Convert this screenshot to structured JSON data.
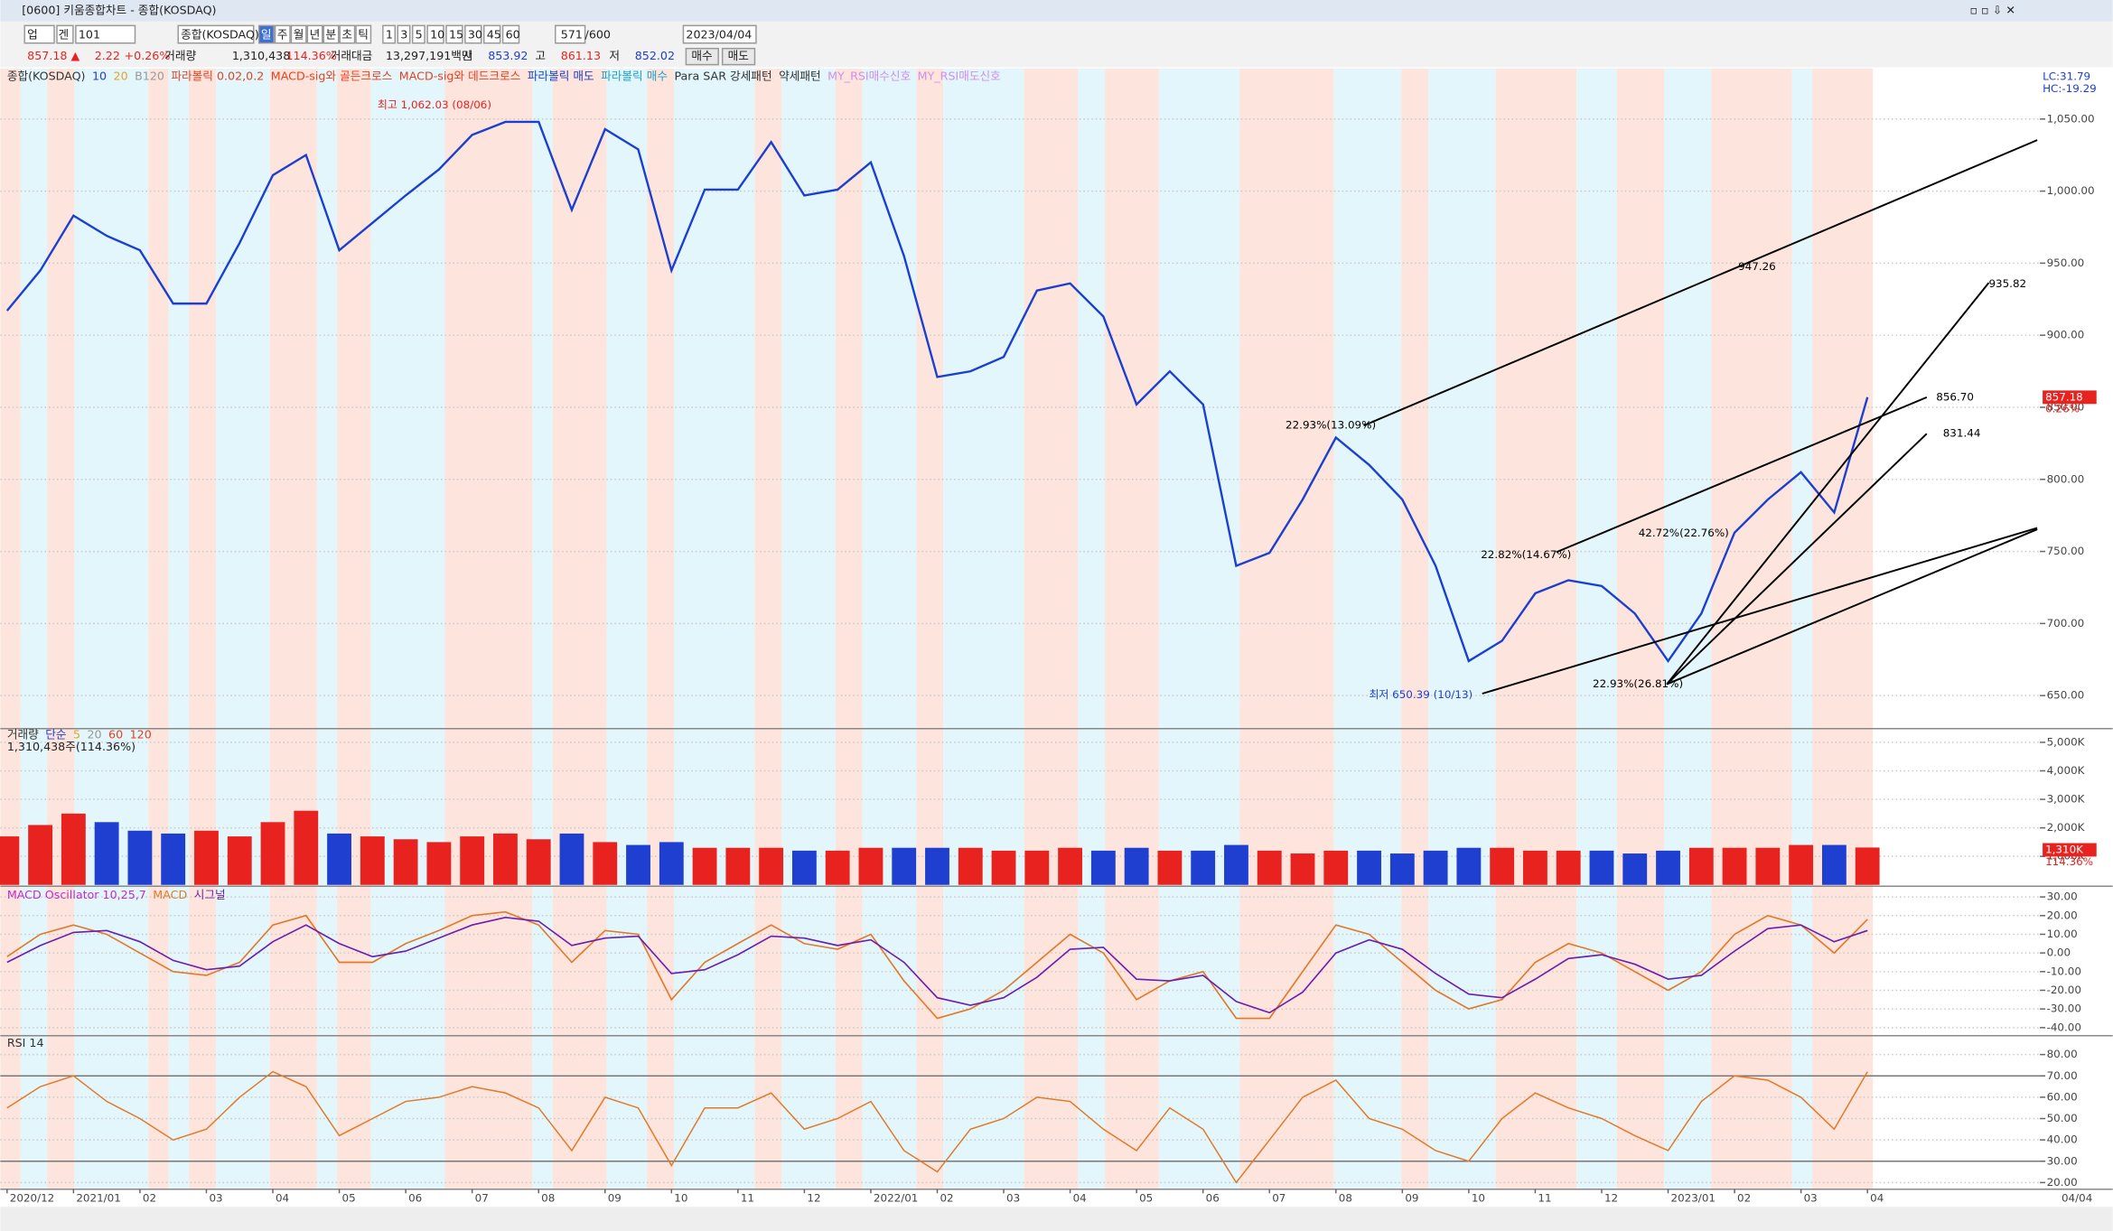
{
  "window": {
    "title_bar": "[0600] 키움종합차트 - 종합(KOSDAQ)",
    "toolbar": {
      "market": "업",
      "mode": "겐",
      "code": "101",
      "name": "종합(KOSDAQ)",
      "periods": [
        "일",
        "주",
        "월",
        "년",
        "분",
        "초",
        "틱"
      ],
      "intervals": [
        "1",
        "3",
        "5",
        "10",
        "15",
        "30",
        "45",
        "60"
      ],
      "count": "571",
      "max": "/600",
      "date": "2023/04/04"
    },
    "quote": {
      "price": "857.18 ▲",
      "change": "2.22",
      "change_pct": "+0.26%",
      "volume_label": "거래량",
      "volume": "1,310,438",
      "volume_pct": "114.36%",
      "amount_label": "거래대금",
      "amount": "13,297,191백만",
      "open_label": "시",
      "open": "853.92",
      "high_label": "고",
      "high": "861.13",
      "low_label": "저",
      "low": "852.02",
      "buy": "매수",
      "sell": "매도"
    },
    "axis_end_date": "04/04"
  },
  "chart_data": [
    {
      "type": "line",
      "title": "종합(KOSDAQ)",
      "legend_items": [
        "10",
        "20",
        "B120",
        "파라볼릭 0.02,0.2",
        "MACD-sig와 골든크로스",
        "MACD-sig와 데드크로스",
        "파라볼릭 매도",
        "파라볼릭 매수",
        "Para SAR 강세패턴",
        "약세패턴",
        "MY_RSI매수신호",
        "MY_RSI매도신호"
      ],
      "annotations": [
        "최고 1,062.03 (08/06)",
        "최저 650.39 (10/13)",
        "947.26",
        "935.82",
        "856.70",
        "831.44",
        "22.93%(13.09%)",
        "22.82%(14.67%)",
        "42.72%(22.76%)",
        "22.93%(26.81%)"
      ],
      "right_labels": [
        "LC:31.79",
        "HC:-19.29"
      ],
      "last_label": "857.18",
      "last_pct": "0.26%",
      "categories": [
        "2020/12",
        null,
        "2021/01",
        null,
        "02",
        null,
        "03",
        null,
        "04",
        null,
        "05",
        null,
        "06",
        null,
        "07",
        null,
        "08",
        null,
        "09",
        null,
        "10",
        null,
        "11",
        null,
        "12",
        null,
        "2022/01",
        null,
        "02",
        null,
        "03",
        null,
        "04",
        null,
        "05",
        null,
        "06",
        null,
        "07",
        null,
        "08",
        null,
        "09",
        null,
        "10",
        null,
        "11",
        null,
        "12",
        null,
        "2023/01",
        null,
        "02",
        null,
        "03",
        null,
        "04"
      ],
      "values": [
        917,
        945,
        983,
        969,
        959,
        922,
        922,
        964,
        1011,
        1025,
        959,
        978,
        997,
        1015,
        1039,
        1048,
        1048,
        987,
        1043,
        1029,
        945,
        1001,
        1001,
        1034,
        997,
        1001,
        1020,
        955,
        871,
        875,
        885,
        931,
        936,
        913,
        852,
        875,
        852,
        740,
        749,
        786,
        829,
        810,
        786,
        740,
        674,
        688,
        721,
        730,
        726,
        707,
        674,
        707,
        763,
        786,
        805,
        777,
        857
      ],
      "color": "#1b3fd0",
      "ylim": [
        628,
        1084
      ],
      "yticks": [
        {
          "value": 650,
          "label": "650.00"
        },
        {
          "value": 700,
          "label": "700.00"
        },
        {
          "value": 750,
          "label": "750.00"
        },
        {
          "value": 800,
          "label": "800.00"
        },
        {
          "value": 850,
          "label": "850.00"
        },
        {
          "value": 900,
          "label": "900.00"
        },
        {
          "value": 950,
          "label": "950.00"
        },
        {
          "value": 1000,
          "label": "1,000.00"
        },
        {
          "value": 1050,
          "label": "1,050.00"
        }
      ]
    },
    {
      "type": "bar",
      "title": "거래량",
      "legend_items": [
        "단순",
        "5",
        "20",
        "60",
        "120"
      ],
      "summary": "1,310,438주(114.36%)",
      "last_label": "1,310K",
      "last_pct": "114.36%",
      "categories": [
        "2020/12",
        null,
        "2021/01",
        null,
        "02",
        null,
        "03",
        null,
        "04",
        null,
        "05",
        null,
        "06",
        null,
        "07",
        null,
        "08",
        null,
        "09",
        null,
        "10",
        null,
        "11",
        null,
        "12",
        null,
        "2022/01",
        null,
        "02",
        null,
        "03",
        null,
        "04",
        null,
        "05",
        null,
        "06",
        null,
        "07",
        null,
        "08",
        null,
        "09",
        null,
        "10",
        null,
        "11",
        null,
        "12",
        null,
        "2023/01",
        null,
        "02",
        null,
        "03",
        null,
        "04"
      ],
      "values": [
        1700,
        2100,
        2500,
        2200,
        1900,
        1800,
        1900,
        1700,
        2200,
        2600,
        1800,
        1700,
        1600,
        1500,
        1700,
        1800,
        1600,
        1800,
        1500,
        1400,
        1500,
        1300,
        1300,
        1300,
        1200,
        1200,
        1300,
        1300,
        1300,
        1300,
        1200,
        1200,
        1300,
        1200,
        1300,
        1200,
        1200,
        1400,
        1200,
        1100,
        1200,
        1200,
        1100,
        1200,
        1300,
        1300,
        1200,
        1200,
        1200,
        1100,
        1200,
        1300,
        1300,
        1300,
        1400,
        1400,
        1310
      ],
      "color_up": "#e8231f",
      "color_down": "#1f3fd0",
      "ylim": [
        0,
        5480
      ],
      "yticks": [
        {
          "value": 1000,
          "label": "1,000K"
        },
        {
          "value": 2000,
          "label": "2,000K"
        },
        {
          "value": 3000,
          "label": "3,000K"
        },
        {
          "value": 4000,
          "label": "4,000K"
        },
        {
          "value": 5000,
          "label": "5,000K"
        }
      ]
    },
    {
      "type": "line",
      "title": "MACD Oscillator 10,25,7",
      "categories": [
        "2020/12",
        null,
        "2021/01",
        null,
        "02",
        null,
        "03",
        null,
        "04",
        null,
        "05",
        null,
        "06",
        null,
        "07",
        null,
        "08",
        null,
        "09",
        null,
        "10",
        null,
        "11",
        null,
        "12",
        null,
        "2022/01",
        null,
        "02",
        null,
        "03",
        null,
        "04",
        null,
        "05",
        null,
        "06",
        null,
        "07",
        null,
        "08",
        null,
        "09",
        null,
        "10",
        null,
        "11",
        null,
        "12",
        null,
        "2023/01",
        null,
        "02",
        null,
        "03",
        null,
        "04"
      ],
      "series": [
        {
          "name": "MACD",
          "color": "#e07a2a",
          "values": [
            -2,
            10,
            15,
            10,
            0,
            -10,
            -12,
            -5,
            15,
            20,
            -5,
            -5,
            5,
            12,
            20,
            22,
            15,
            -5,
            12,
            10,
            -25,
            -5,
            5,
            15,
            5,
            2,
            10,
            -15,
            -35,
            -30,
            -20,
            -5,
            10,
            0,
            -25,
            -15,
            -10,
            -35,
            -35,
            -10,
            15,
            10,
            -5,
            -20,
            -30,
            -25,
            -5,
            5,
            0,
            -10,
            -20,
            -10,
            10,
            20,
            15,
            0,
            18
          ]
        },
        {
          "name": "시그널",
          "color": "#6a1fb0",
          "values": [
            -5,
            4,
            11,
            12,
            6,
            -4,
            -9,
            -7,
            6,
            15,
            5,
            -2,
            1,
            8,
            15,
            19,
            17,
            4,
            8,
            9,
            -11,
            -9,
            -1,
            9,
            8,
            4,
            7,
            -5,
            -24,
            -28,
            -24,
            -13,
            2,
            3,
            -14,
            -15,
            -12,
            -26,
            -32,
            -21,
            0,
            7,
            2,
            -11,
            -22,
            -24,
            -14,
            -3,
            -1,
            -6,
            -14,
            -12,
            1,
            13,
            15,
            6,
            12
          ]
        }
      ],
      "ylim": [
        -43.6,
        34.3
      ],
      "yticks": [
        {
          "value": -40,
          "label": "-40.00"
        },
        {
          "value": -30,
          "label": "-30.00"
        },
        {
          "value": -20,
          "label": "-20.00"
        },
        {
          "value": -10,
          "label": "-10.00"
        },
        {
          "value": 0,
          "label": "0.00"
        },
        {
          "value": 10,
          "label": "10.00"
        },
        {
          "value": 20,
          "label": "20.00"
        },
        {
          "value": 30,
          "label": "30.00"
        }
      ]
    },
    {
      "type": "line",
      "title": "RSI 14",
      "categories": [
        "2020/12",
        null,
        "2021/01",
        null,
        "02",
        null,
        "03",
        null,
        "04",
        null,
        "05",
        null,
        "06",
        null,
        "07",
        null,
        "08",
        null,
        "09",
        null,
        "10",
        null,
        "11",
        null,
        "12",
        null,
        "2022/01",
        null,
        "02",
        null,
        "03",
        null,
        "04",
        null,
        "05",
        null,
        "06",
        null,
        "07",
        null,
        "08",
        null,
        "09",
        null,
        "10",
        null,
        "11",
        null,
        "12",
        null,
        "2023/01",
        null,
        "02",
        null,
        "03",
        null,
        "04"
      ],
      "values": [
        55,
        65,
        70,
        58,
        50,
        40,
        45,
        60,
        72,
        65,
        42,
        50,
        58,
        60,
        65,
        62,
        55,
        35,
        60,
        55,
        28,
        55,
        55,
        62,
        45,
        50,
        58,
        35,
        25,
        45,
        50,
        60,
        58,
        45,
        35,
        55,
        45,
        20,
        40,
        60,
        68,
        50,
        45,
        35,
        30,
        50,
        62,
        55,
        50,
        42,
        35,
        58,
        70,
        68,
        60,
        45,
        72
      ],
      "color": "#e07a2a",
      "ref_lines": [
        30,
        70
      ],
      "ylim": [
        17.5,
        88.2
      ],
      "yticks": [
        {
          "value": 20,
          "label": "20.00"
        },
        {
          "value": 30,
          "label": "30.00"
        },
        {
          "value": 40,
          "label": "40.00"
        },
        {
          "value": 50,
          "label": "50.00"
        },
        {
          "value": 60,
          "label": "60.00"
        },
        {
          "value": 70,
          "label": "70.00"
        },
        {
          "value": 80,
          "label": "80.00"
        }
      ]
    }
  ]
}
